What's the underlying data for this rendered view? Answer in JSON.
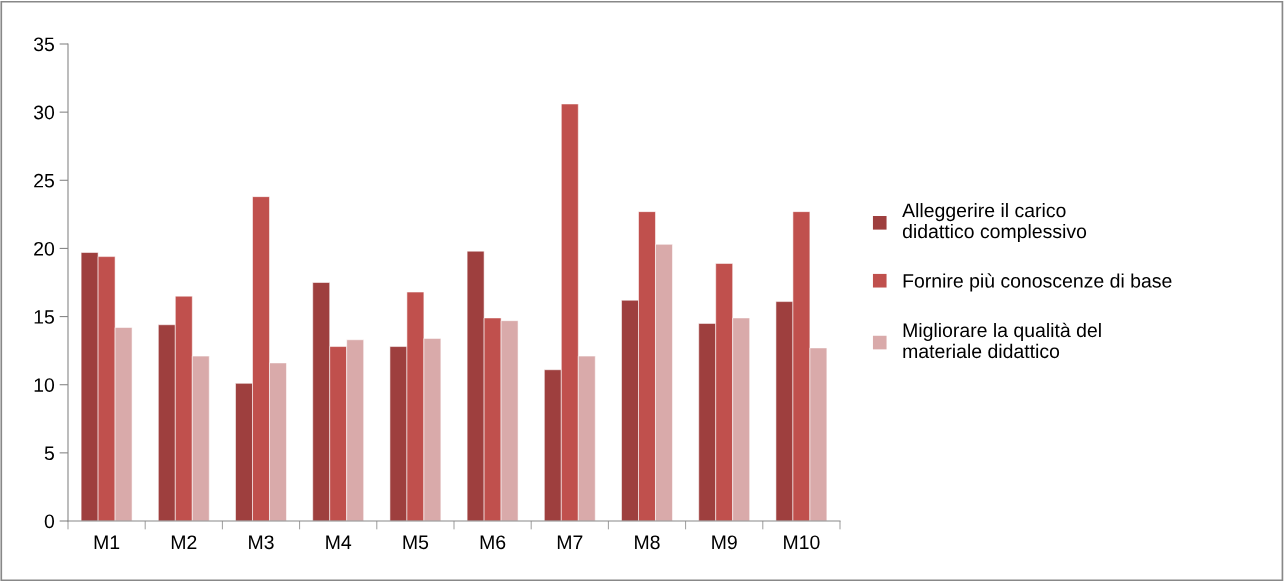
{
  "chart_data": {
    "type": "bar",
    "categories": [
      "M1",
      "M2",
      "M3",
      "M4",
      "M5",
      "M6",
      "M7",
      "M8",
      "M9",
      "M10"
    ],
    "series": [
      {
        "name": "Alleggerire il carico didattico complessivo",
        "color": "#9e3f3e",
        "values": [
          19.7,
          14.4,
          10.1,
          17.5,
          12.8,
          19.8,
          11.1,
          16.2,
          14.5,
          16.1
        ]
      },
      {
        "name": "Fornire più conoscenze di base",
        "color": "#c0504d",
        "values": [
          19.4,
          16.5,
          23.8,
          12.8,
          16.8,
          14.9,
          30.6,
          22.7,
          18.9,
          22.7
        ]
      },
      {
        "name": "Migliorare la qualità del materiale didattico",
        "color": "#d9aaaa",
        "values": [
          14.2,
          12.1,
          11.6,
          13.3,
          13.4,
          14.7,
          12.1,
          20.3,
          14.9,
          12.7
        ]
      }
    ],
    "ylim": [
      0,
      35
    ],
    "yticks": [
      0,
      5,
      10,
      15,
      20,
      25,
      30,
      35
    ],
    "grid": false,
    "legend": "right"
  }
}
